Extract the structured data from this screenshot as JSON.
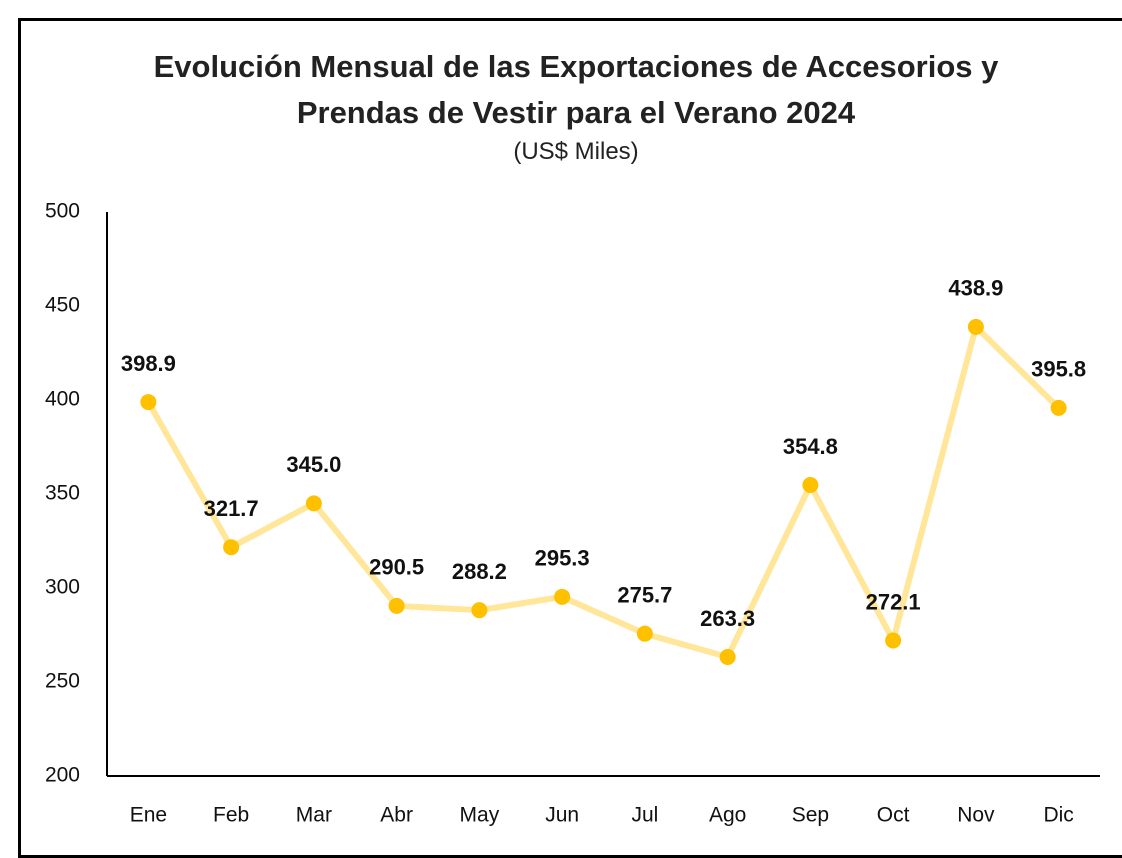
{
  "chart_data": {
    "type": "line",
    "title": "Evolución Mensual de las Exportaciones de Accesorios y Prendas de Vestir para el Verano 2024",
    "subtitle": "(US$ Miles)",
    "categories": [
      "Ene",
      "Feb",
      "Mar",
      "Abr",
      "May",
      "Jun",
      "Jul",
      "Ago",
      "Sep",
      "Oct",
      "Nov",
      "Dic"
    ],
    "series": [
      {
        "name": "Exportaciones",
        "color": "#ffe699",
        "marker_color": "#ffc000",
        "values": [
          398.9,
          321.7,
          345.0,
          290.5,
          288.2,
          295.3,
          275.7,
          263.3,
          354.8,
          272.1,
          438.9,
          395.8
        ],
        "value_labels": [
          "398.9",
          "321.7",
          "345.0",
          "290.5",
          "288.2",
          "295.3",
          "275.7",
          "263.3",
          "354.8",
          "272.1",
          "438.9",
          "395.8"
        ]
      }
    ],
    "ylim": [
      200,
      500
    ],
    "yticks": [
      200,
      250,
      300,
      350,
      400,
      450,
      500
    ],
    "grid": false,
    "legend": false
  }
}
